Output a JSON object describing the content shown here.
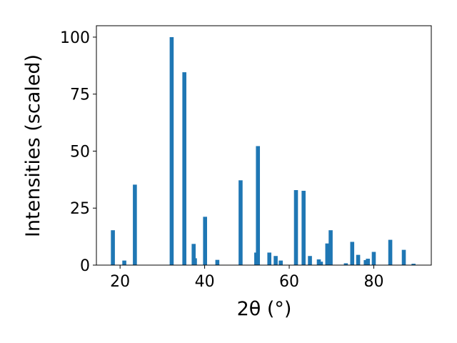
{
  "chart_data": {
    "type": "bar",
    "xlabel": "2θ (°)",
    "ylabel": "Intensities (scaled)",
    "x": [
      18.3,
      21.0,
      23.5,
      32.2,
      35.2,
      37.4,
      37.7,
      40.1,
      43.0,
      48.5,
      52.2,
      52.6,
      55.3,
      56.8,
      58.0,
      61.6,
      63.4,
      64.9,
      67.0,
      67.5,
      69.0,
      69.8,
      73.4,
      74.9,
      76.3,
      78.1,
      78.6,
      80.0,
      83.9,
      87.1,
      89.4
    ],
    "values": [
      15.3,
      2,
      35.3,
      100,
      84.6,
      9.3,
      3,
      21.2,
      2.3,
      37.2,
      5.5,
      52.2,
      5.5,
      4,
      2,
      32.9,
      32.6,
      4,
      2.5,
      1.5,
      9.5,
      15.3,
      0.8,
      10.2,
      4.5,
      2.2,
      2.8,
      5.8,
      11.1,
      6.7,
      0.6
    ],
    "color": "#1f77b4",
    "xlim": [
      14.4,
      93.6
    ],
    "xticks": [
      20,
      40,
      60,
      80
    ],
    "ylim": [
      0,
      105
    ],
    "yticks": [
      0,
      25,
      50,
      75,
      100
    ]
  }
}
